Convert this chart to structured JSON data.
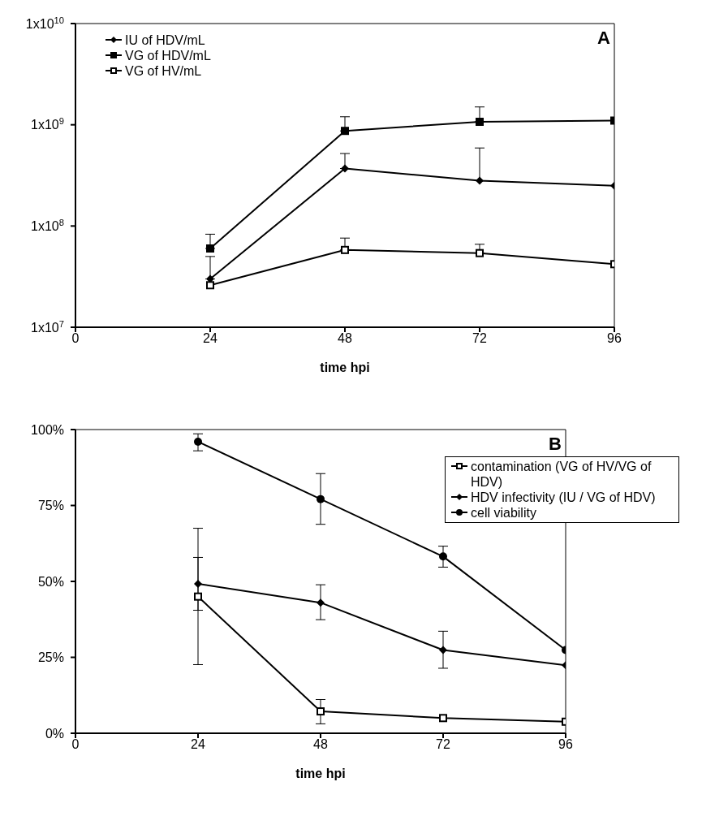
{
  "chart_data": [
    {
      "type": "line",
      "annotations": [
        "A"
      ],
      "xlabel": "time hpi",
      "x": [
        24,
        48,
        72,
        96
      ],
      "xlim": [
        0,
        96
      ],
      "xticks": [
        0,
        24,
        48,
        72,
        96
      ],
      "log": "y",
      "ylim": [
        10000000,
        10000000000
      ],
      "yticks": [
        {
          "value": 10000000,
          "label": "1x10$^{7}$"
        },
        {
          "value": 100000000,
          "label": "1x10$^{8}$"
        },
        {
          "value": 1000000000,
          "label": "1x10$^{9}$"
        },
        {
          "value": 10000000000,
          "label": "1x10$^{10}$"
        }
      ],
      "legend": "top left",
      "line_style": "solid",
      "series": [
        {
          "name": "IU of HDV/mL",
          "color": "#000000",
          "marker": "diamond",
          "values": [
            30000000,
            370000000,
            280000000,
            250000000
          ],
          "errors": [
            [
              30000000,
              50000000
            ],
            [
              370000000,
              520000000
            ],
            [
              280000000,
              590000000
            ],
            null
          ]
        },
        {
          "name": "VG of HDV/mL",
          "color": "#000000",
          "marker": "square",
          "values": [
            60000000,
            870000000,
            1070000000,
            1100000000
          ],
          "errors": [
            [
              60000000,
              83000000
            ],
            [
              870000000,
              1200000000
            ],
            [
              1070000000,
              1500000000
            ],
            null
          ]
        },
        {
          "name": "VG of HV/mL",
          "color": "#000000",
          "marker": "square-open",
          "values": [
            26000000,
            58000000,
            54000000,
            42000000
          ],
          "errors": [
            null,
            [
              58000000,
              76000000
            ],
            [
              54000000,
              66000000
            ],
            null
          ]
        }
      ]
    },
    {
      "type": "line",
      "annotations": [
        "B"
      ],
      "xlabel": "time hpi",
      "x": [
        24,
        48,
        72,
        96
      ],
      "xlim": [
        0,
        96
      ],
      "xticks": [
        0,
        24,
        48,
        72,
        96
      ],
      "ylim": [
        0,
        100
      ],
      "yticks": [
        {
          "value": 0,
          "label": "0%"
        },
        {
          "value": 25,
          "label": "25%"
        },
        {
          "value": 50,
          "label": "50%"
        },
        {
          "value": 75,
          "label": "75%"
        },
        {
          "value": 100,
          "label": "100%"
        }
      ],
      "legend": "top right",
      "line_style": "solid",
      "series": [
        {
          "name": "contamination (VG of HV/VG of HDV)",
          "color": "#000000",
          "marker": "square-open",
          "values": [
            45,
            7.2,
            5,
            3.8
          ],
          "errors": [
            [
              22.6,
              67.5
            ],
            [
              3.1,
              11.1
            ],
            null,
            null
          ]
        },
        {
          "name": "HDV infectivity (IU / VG of HDV)",
          "color": "#000000",
          "marker": "diamond",
          "values": [
            49.2,
            43,
            27.4,
            22.4
          ],
          "errors": [
            [
              40.5,
              57.9
            ],
            [
              37.4,
              48.9
            ],
            [
              21.4,
              33.6
            ],
            null
          ]
        },
        {
          "name": "cell viability",
          "color": "#000000",
          "marker": "circle",
          "values": [
            96,
            77.1,
            58.2,
            27.4
          ],
          "errors": [
            [
              93,
              98.6
            ],
            [
              68.8,
              85.5
            ],
            [
              54.7,
              61.6
            ],
            null
          ]
        }
      ]
    }
  ]
}
